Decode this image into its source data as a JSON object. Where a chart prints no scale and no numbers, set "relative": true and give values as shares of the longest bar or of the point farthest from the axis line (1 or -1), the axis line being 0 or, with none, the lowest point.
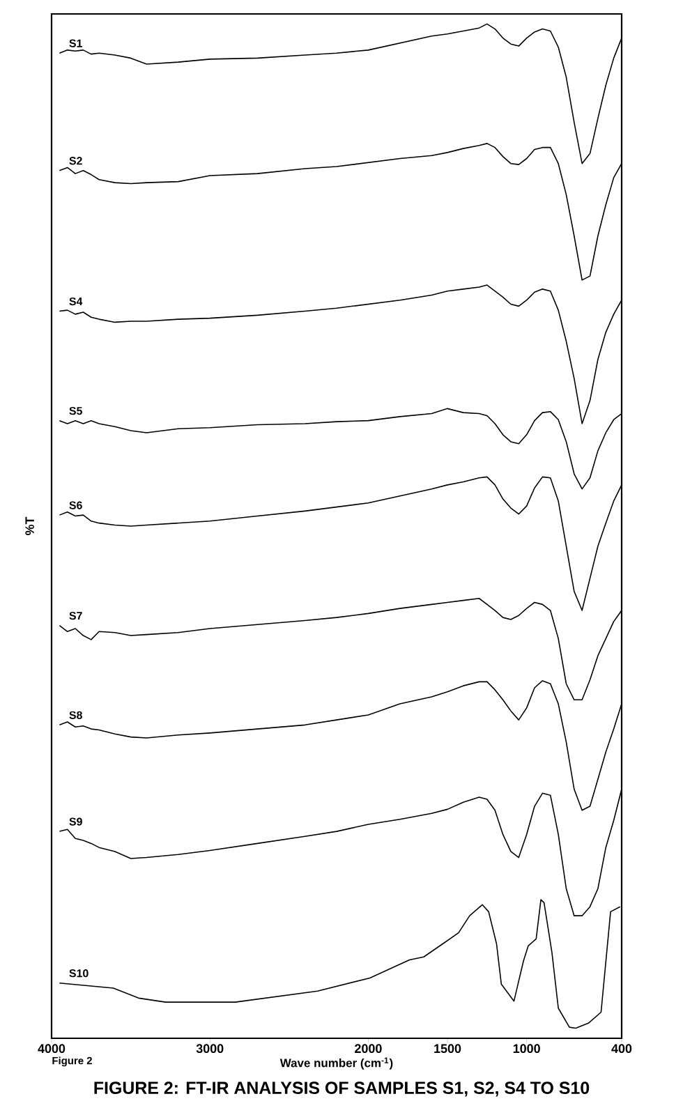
{
  "chart_data": {
    "type": "line",
    "relative": true,
    "title": "FIGURE 2: FT-IR ANALYSIS OF SAMPLES S1, S2, S4 TO S10",
    "xlabel": "Wave number (cm$^{-1}$)",
    "ylabel": "%T",
    "annotations": [
      "Figure 2"
    ],
    "xlim": [
      4000,
      400
    ],
    "xticks": [
      4000,
      3000,
      2000,
      1500,
      1000,
      400
    ],
    "legend": false,
    "grid": false,
    "marker": "none",
    "line_style": "solid",
    "x": [
      3950,
      3900,
      3850,
      3800,
      3750,
      3700,
      3600,
      3500,
      3400,
      3200,
      3000,
      2700,
      2400,
      2200,
      2000,
      1800,
      1600,
      1500,
      1400,
      1300,
      1250,
      1200,
      1150,
      1100,
      1050,
      1000,
      950,
      900,
      850,
      800,
      750,
      700,
      650,
      600,
      550,
      500,
      450,
      400
    ],
    "series": [
      {
        "name": "S1",
        "color": "#000000",
        "values": [
          0.971,
          0.974,
          0.973,
          0.974,
          0.97,
          0.971,
          0.969,
          0.966,
          0.96,
          0.962,
          0.965,
          0.966,
          0.969,
          0.971,
          0.974,
          0.981,
          0.988,
          0.99,
          0.993,
          0.996,
          1,
          0.995,
          0.986,
          0.98,
          0.978,
          0.986,
          0.992,
          0.995,
          0.993,
          0.977,
          0.947,
          0.902,
          0.861,
          0.871,
          0.906,
          0.939,
          0.966,
          0.986
        ]
      },
      {
        "name": "S2",
        "color": "#000000",
        "values": [
          0.854,
          0.857,
          0.851,
          0.854,
          0.85,
          0.845,
          0.842,
          0.841,
          0.842,
          0.843,
          0.849,
          0.851,
          0.856,
          0.858,
          0.862,
          0.866,
          0.869,
          0.872,
          0.876,
          0.879,
          0.881,
          0.877,
          0.868,
          0.861,
          0.86,
          0.866,
          0.875,
          0.877,
          0.877,
          0.861,
          0.83,
          0.789,
          0.745,
          0.749,
          0.789,
          0.82,
          0.847,
          0.861
        ]
      },
      {
        "name": "S4",
        "color": "#000000",
        "values": [
          0.714,
          0.715,
          0.711,
          0.713,
          0.708,
          0.706,
          0.703,
          0.704,
          0.704,
          0.706,
          0.707,
          0.71,
          0.714,
          0.717,
          0.721,
          0.725,
          0.73,
          0.734,
          0.736,
          0.738,
          0.74,
          0.734,
          0.728,
          0.721,
          0.719,
          0.725,
          0.733,
          0.736,
          0.734,
          0.715,
          0.684,
          0.647,
          0.602,
          0.625,
          0.666,
          0.693,
          0.711,
          0.725
        ]
      },
      {
        "name": "S5",
        "color": "#000000",
        "values": [
          0.605,
          0.602,
          0.605,
          0.602,
          0.605,
          0.602,
          0.599,
          0.595,
          0.593,
          0.597,
          0.598,
          0.601,
          0.602,
          0.604,
          0.605,
          0.609,
          0.612,
          0.617,
          0.613,
          0.612,
          0.61,
          0.602,
          0.591,
          0.584,
          0.582,
          0.591,
          0.605,
          0.613,
          0.614,
          0.606,
          0.584,
          0.552,
          0.537,
          0.548,
          0.575,
          0.593,
          0.606,
          0.612
        ]
      },
      {
        "name": "S6",
        "color": "#000000",
        "values": [
          0.511,
          0.514,
          0.51,
          0.511,
          0.505,
          0.503,
          0.501,
          0.5,
          0.501,
          0.503,
          0.505,
          0.51,
          0.515,
          0.519,
          0.523,
          0.53,
          0.537,
          0.541,
          0.544,
          0.548,
          0.549,
          0.541,
          0.527,
          0.518,
          0.512,
          0.52,
          0.538,
          0.549,
          0.548,
          0.525,
          0.48,
          0.435,
          0.416,
          0.448,
          0.48,
          0.503,
          0.525,
          0.541
        ]
      },
      {
        "name": "S7",
        "color": "#000000",
        "values": [
          0.401,
          0.395,
          0.398,
          0.391,
          0.387,
          0.395,
          0.394,
          0.391,
          0.392,
          0.394,
          0.398,
          0.402,
          0.406,
          0.409,
          0.413,
          0.418,
          0.422,
          0.424,
          0.426,
          0.428,
          0.422,
          0.416,
          0.409,
          0.407,
          0.411,
          0.418,
          0.424,
          0.422,
          0.416,
          0.388,
          0.343,
          0.327,
          0.327,
          0.347,
          0.371,
          0.388,
          0.405,
          0.416
        ]
      },
      {
        "name": "S8",
        "color": "#000000",
        "values": [
          0.302,
          0.305,
          0.3,
          0.301,
          0.298,
          0.297,
          0.293,
          0.29,
          0.289,
          0.292,
          0.294,
          0.298,
          0.302,
          0.307,
          0.312,
          0.323,
          0.33,
          0.335,
          0.341,
          0.345,
          0.345,
          0.337,
          0.327,
          0.316,
          0.307,
          0.319,
          0.339,
          0.346,
          0.343,
          0.323,
          0.285,
          0.238,
          0.217,
          0.221,
          0.248,
          0.275,
          0.298,
          0.323
        ]
      },
      {
        "name": "S9",
        "color": "#000000",
        "values": [
          0.196,
          0.198,
          0.189,
          0.187,
          0.184,
          0.18,
          0.176,
          0.169,
          0.17,
          0.173,
          0.177,
          0.184,
          0.191,
          0.196,
          0.203,
          0.208,
          0.214,
          0.218,
          0.225,
          0.23,
          0.228,
          0.217,
          0.193,
          0.176,
          0.17,
          0.193,
          0.221,
          0.234,
          0.232,
          0.193,
          0.139,
          0.112,
          0.112,
          0.121,
          0.139,
          0.18,
          0.207,
          0.238
        ]
      },
      {
        "name": "S10",
        "color": "#000000",
        "x": [
          3950,
          3610,
          3450,
          3280,
          2840,
          2320,
          1990,
          1740,
          1650,
          1530,
          1430,
          1360,
          1280,
          1240,
          1190,
          1160,
          1080,
          1020,
          990,
          940,
          910,
          890,
          840,
          800,
          730,
          690,
          610,
          530,
          470,
          410
        ],
        "values": [
          0.045,
          0.04,
          0.03,
          0.026,
          0.026,
          0.037,
          0.05,
          0.068,
          0.071,
          0.084,
          0.095,
          0.112,
          0.123,
          0.116,
          0.084,
          0.044,
          0.027,
          0.067,
          0.082,
          0.089,
          0.128,
          0.125,
          0.075,
          0.02,
          0.001,
          0,
          0.005,
          0.016,
          0.116,
          0.121
        ]
      }
    ]
  }
}
